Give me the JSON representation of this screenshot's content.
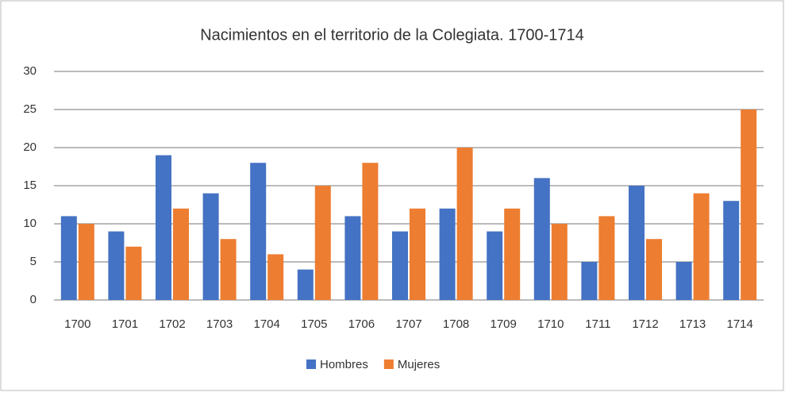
{
  "chart_data": {
    "type": "bar",
    "title": "Nacimientos en el territorio de la Colegiata. 1700-1714",
    "categories": [
      "1700",
      "1701",
      "1702",
      "1703",
      "1704",
      "1705",
      "1706",
      "1707",
      "1708",
      "1709",
      "1710",
      "1711",
      "1712",
      "1713",
      "1714"
    ],
    "series": [
      {
        "name": "Hombres",
        "color": "#4472c4",
        "values": [
          11,
          9,
          19,
          14,
          18,
          4,
          11,
          9,
          12,
          9,
          16,
          5,
          15,
          5,
          13
        ]
      },
      {
        "name": "Mujeres",
        "color": "#ed7d31",
        "values": [
          10,
          7,
          12,
          8,
          6,
          15,
          18,
          12,
          20,
          12,
          10,
          11,
          8,
          14,
          25
        ]
      }
    ],
    "ylim": [
      0,
      30
    ],
    "yticks": [
      0,
      5,
      10,
      15,
      20,
      25,
      30
    ],
    "grid": true,
    "legend": "bottom"
  }
}
